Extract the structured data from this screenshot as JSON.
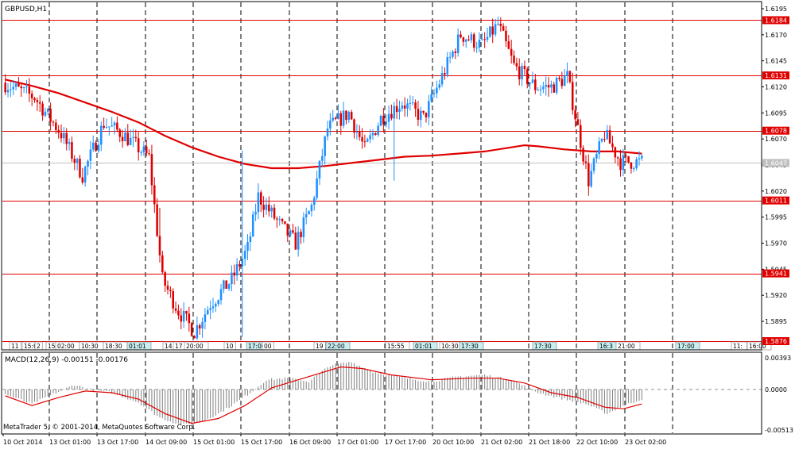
{
  "window": {
    "symbol_title": "GBPUSD,H1"
  },
  "footer": {
    "copyright": "MetaTrader 5, © 2001-2014, MetaQuotes Software Corp."
  },
  "colors": {
    "bull_candle": "#1E90FF",
    "bear_candle": "#DD0000",
    "moving_average": "#E00000",
    "level_line": "#E00000",
    "grid_vertical": "#000000",
    "macd_histogram": "#808080",
    "macd_signal": "#E00000",
    "current_price_line": "#C0C0C0"
  },
  "chart_data": [
    {
      "type": "candlestick",
      "title": "GBPUSD,H1",
      "ylim": [
        1.5876,
        1.6195
      ],
      "y_tick_labels": [
        "1.6195",
        "1.6170",
        "1.6145",
        "1.6120",
        "1.6095",
        "1.6070",
        "1.6045",
        "1.6020",
        "1.5995",
        "1.5970",
        "1.5945",
        "1.5920",
        "1.5895"
      ],
      "x_tick_labels": [
        "10 Oct 2014",
        "13 Oct 01:00",
        "13 Oct 17:00",
        "14 Oct 09:00",
        "15 Oct 01:00",
        "15 Oct 17:00",
        "16 Oct 09:00",
        "17 Oct 01:00",
        "17 Oct 17:00",
        "20 Oct 10:00",
        "21 Oct 02:00",
        "21 Oct 18:00",
        "22 Oct 10:00",
        "23 Oct 02:00"
      ],
      "horizontal_levels": [
        {
          "label": "1.6184",
          "value": 1.6184
        },
        {
          "label": "1.6131",
          "value": 1.6131
        },
        {
          "label": "1.6078",
          "value": 1.6078
        },
        {
          "label": "1.6011",
          "value": 1.6011
        },
        {
          "label": "1.5941",
          "value": 1.5941
        },
        {
          "label": "1.5876",
          "value": 1.5876
        }
      ],
      "current_price": {
        "label": "1.6047",
        "value": 1.6047
      },
      "time_labels": [
        "11",
        "15:0",
        "2",
        "15",
        "02:00",
        "10:30",
        "18:30",
        "01:01",
        "14",
        "17",
        "20:00",
        "10",
        "17:00",
        "00",
        "19",
        "22:00",
        "15:55",
        "01:01",
        "10:30",
        "17:30",
        "17:30",
        "16:3",
        "21:00",
        "17:00",
        "11:",
        "16:00"
      ],
      "moving_average": [
        [
          0,
          1.6127
        ],
        [
          10,
          1.6121
        ],
        [
          20,
          1.6114
        ],
        [
          30,
          1.6105
        ],
        [
          40,
          1.6096
        ],
        [
          50,
          1.6086
        ],
        [
          60,
          1.6073
        ],
        [
          70,
          1.6062
        ],
        [
          80,
          1.6053
        ],
        [
          90,
          1.6046
        ],
        [
          100,
          1.6042
        ],
        [
          110,
          1.6042
        ],
        [
          120,
          1.6044
        ],
        [
          130,
          1.6047
        ],
        [
          140,
          1.605
        ],
        [
          150,
          1.6053
        ],
        [
          160,
          1.6054
        ],
        [
          170,
          1.6056
        ],
        [
          180,
          1.6058
        ],
        [
          190,
          1.6062
        ],
        [
          195,
          1.6064
        ],
        [
          200,
          1.6063
        ],
        [
          210,
          1.606
        ],
        [
          220,
          1.6058
        ],
        [
          230,
          1.6058
        ],
        [
          239,
          1.6056
        ]
      ],
      "anchors": [
        [
          0,
          1.6124
        ],
        [
          12,
          1.611
        ],
        [
          22,
          1.6075
        ],
        [
          30,
          1.6035
        ],
        [
          38,
          1.6085
        ],
        [
          45,
          1.6075
        ],
        [
          55,
          1.6052
        ],
        [
          60,
          1.5935
        ],
        [
          66,
          1.5905
        ],
        [
          72,
          1.5885
        ],
        [
          78,
          1.5912
        ],
        [
          86,
          1.5935
        ],
        [
          92,
          1.5965
        ],
        [
          96,
          1.6015
        ],
        [
          104,
          1.5988
        ],
        [
          110,
          1.597
        ],
        [
          116,
          1.6005
        ],
        [
          122,
          1.608
        ],
        [
          130,
          1.6095
        ],
        [
          136,
          1.606
        ],
        [
          142,
          1.609
        ],
        [
          150,
          1.6105
        ],
        [
          158,
          1.609
        ],
        [
          165,
          1.613
        ],
        [
          172,
          1.617
        ],
        [
          180,
          1.616
        ],
        [
          186,
          1.618
        ],
        [
          192,
          1.614
        ],
        [
          200,
          1.612
        ],
        [
          206,
          1.612
        ],
        [
          212,
          1.613
        ],
        [
          216,
          1.608
        ],
        [
          220,
          1.603
        ],
        [
          226,
          1.6075
        ],
        [
          232,
          1.6048
        ],
        [
          239,
          1.6048
        ]
      ],
      "spikes": [
        [
          89,
          1.588,
          1.6059
        ],
        [
          58,
          1.5968,
          1.6004
        ],
        [
          146,
          1.603,
          1.607
        ]
      ]
    },
    {
      "type": "bar",
      "title": "MACD(12,26,9) -0.00151 -0.00176",
      "ylim": [
        -0.00513,
        0.00393
      ],
      "y_tick_labels": [
        "0.00393",
        "0.0000",
        "-0.00513"
      ],
      "histogram_anchors": [
        [
          0,
          -0.0006
        ],
        [
          10,
          -0.0018
        ],
        [
          18,
          -0.0006
        ],
        [
          26,
          0.0006
        ],
        [
          32,
          0.0
        ],
        [
          40,
          -0.0004
        ],
        [
          50,
          -0.0016
        ],
        [
          58,
          -0.0035
        ],
        [
          66,
          -0.0044
        ],
        [
          72,
          -0.0042
        ],
        [
          80,
          -0.003
        ],
        [
          86,
          -0.0018
        ],
        [
          92,
          -0.0004
        ],
        [
          98,
          0.0012
        ],
        [
          106,
          0.0014
        ],
        [
          114,
          0.001
        ],
        [
          122,
          0.003
        ],
        [
          130,
          0.0034
        ],
        [
          138,
          0.0022
        ],
        [
          150,
          0.0014
        ],
        [
          160,
          0.001
        ],
        [
          170,
          0.0016
        ],
        [
          180,
          0.0018
        ],
        [
          190,
          0.0012
        ],
        [
          200,
          -0.0004
        ],
        [
          210,
          -0.0012
        ],
        [
          218,
          -0.0018
        ],
        [
          226,
          -0.003
        ],
        [
          232,
          -0.002
        ],
        [
          239,
          -0.0012
        ]
      ],
      "signal_anchors": [
        [
          0,
          -0.0008
        ],
        [
          10,
          -0.002
        ],
        [
          20,
          -0.001
        ],
        [
          30,
          -0.0002
        ],
        [
          40,
          -0.0004
        ],
        [
          50,
          -0.0012
        ],
        [
          60,
          -0.003
        ],
        [
          70,
          -0.0042
        ],
        [
          80,
          -0.0036
        ],
        [
          90,
          -0.002
        ],
        [
          100,
          0.0002
        ],
        [
          110,
          0.0012
        ],
        [
          118,
          0.002
        ],
        [
          126,
          0.0028
        ],
        [
          134,
          0.0026
        ],
        [
          145,
          0.0018
        ],
        [
          160,
          0.0012
        ],
        [
          175,
          0.0014
        ],
        [
          185,
          0.0014
        ],
        [
          195,
          0.0008
        ],
        [
          205,
          -0.0004
        ],
        [
          215,
          -0.001
        ],
        [
          225,
          -0.0022
        ],
        [
          232,
          -0.0024
        ],
        [
          239,
          -0.0018
        ]
      ]
    }
  ]
}
